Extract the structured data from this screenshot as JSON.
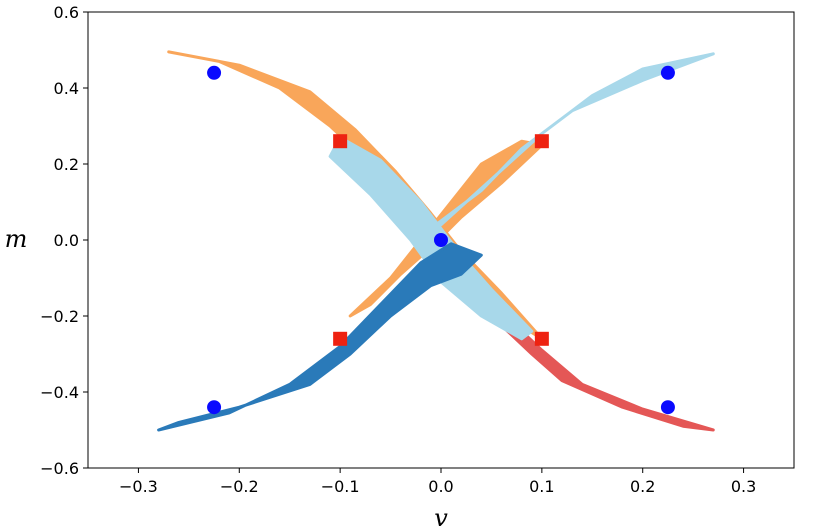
{
  "chart_data": {
    "type": "scatter",
    "xlabel": "v",
    "ylabel": "m",
    "xlim": [
      -0.35,
      0.35
    ],
    "ylim": [
      -0.6,
      0.6
    ],
    "x_ticks": [
      -0.3,
      -0.2,
      -0.1,
      0.0,
      0.1,
      0.2,
      0.3
    ],
    "x_tick_labels": [
      "−0.3",
      "−0.2",
      "−0.1",
      "0.0",
      "0.1",
      "0.2",
      "0.3"
    ],
    "y_ticks": [
      -0.6,
      -0.4,
      -0.2,
      0.0,
      0.2,
      0.4,
      0.6
    ],
    "y_tick_labels": [
      "−0.6",
      "−0.4",
      "−0.2",
      "0.0",
      "0.2",
      "0.4",
      "0.6"
    ],
    "grid": false,
    "legend": "none",
    "regions": [
      {
        "color": "#e45756",
        "points": [
          [
            0.27,
            -0.5
          ],
          [
            0.2,
            -0.445
          ],
          [
            0.14,
            -0.38
          ],
          [
            0.1,
            -0.29
          ],
          [
            0.06,
            -0.19
          ],
          [
            0.03,
            -0.1
          ],
          [
            0.0,
            -0.005
          ],
          [
            -0.005,
            -0.015
          ],
          [
            0.02,
            -0.11
          ],
          [
            0.05,
            -0.2
          ],
          [
            0.09,
            -0.3
          ],
          [
            0.12,
            -0.37
          ],
          [
            0.18,
            -0.44
          ],
          [
            0.24,
            -0.49
          ]
        ]
      },
      {
        "color": "#f9a65a",
        "points": [
          [
            -0.27,
            0.495
          ],
          [
            -0.2,
            0.46
          ],
          [
            -0.13,
            0.39
          ],
          [
            -0.085,
            0.29
          ],
          [
            -0.045,
            0.18
          ],
          [
            -0.01,
            0.07
          ],
          [
            0.02,
            -0.03
          ],
          [
            0.06,
            -0.14
          ],
          [
            0.1,
            -0.26
          ],
          [
            0.07,
            -0.21
          ],
          [
            0.03,
            -0.11
          ],
          [
            0.0,
            -0.02
          ],
          [
            -0.03,
            0.08
          ],
          [
            -0.07,
            0.2
          ],
          [
            -0.11,
            0.3
          ],
          [
            -0.16,
            0.4
          ],
          [
            -0.22,
            0.47
          ]
        ]
      },
      {
        "color": "#f9a65a",
        "points": [
          [
            0.02,
            0.06
          ],
          [
            0.06,
            0.15
          ],
          [
            0.1,
            0.25
          ],
          [
            0.08,
            0.26
          ],
          [
            0.04,
            0.2
          ],
          [
            0.01,
            0.1
          ],
          [
            -0.02,
            0.0
          ],
          [
            -0.05,
            -0.1
          ],
          [
            -0.09,
            -0.2
          ],
          [
            -0.07,
            -0.17
          ],
          [
            -0.04,
            -0.09
          ],
          [
            -0.01,
            -0.02
          ]
        ]
      },
      {
        "color": "#a8d8ea",
        "points": [
          [
            0.27,
            0.49
          ],
          [
            0.2,
            0.45
          ],
          [
            0.15,
            0.38
          ],
          [
            0.1,
            0.28
          ],
          [
            0.05,
            0.16
          ],
          [
            0.0,
            0.04
          ],
          [
            -0.01,
            0.03
          ],
          [
            0.04,
            0.13
          ],
          [
            0.08,
            0.24
          ],
          [
            0.13,
            0.34
          ],
          [
            0.2,
            0.42
          ],
          [
            0.25,
            0.47
          ]
        ]
      },
      {
        "color": "#a8d8ea",
        "points": [
          [
            -0.1,
            0.27
          ],
          [
            -0.06,
            0.21
          ],
          [
            -0.02,
            0.1
          ],
          [
            0.02,
            -0.04
          ],
          [
            0.05,
            -0.13
          ],
          [
            0.09,
            -0.24
          ],
          [
            0.08,
            -0.26
          ],
          [
            0.04,
            -0.2
          ],
          [
            0.0,
            -0.11
          ],
          [
            -0.03,
            0.0
          ],
          [
            -0.07,
            0.12
          ],
          [
            -0.11,
            0.22
          ]
        ]
      },
      {
        "color": "#2a7ab9",
        "points": [
          [
            -0.28,
            -0.5
          ],
          [
            -0.21,
            -0.455
          ],
          [
            -0.15,
            -0.38
          ],
          [
            -0.1,
            -0.28
          ],
          [
            -0.06,
            -0.17
          ],
          [
            -0.02,
            -0.06
          ],
          [
            0.01,
            -0.01
          ],
          [
            0.04,
            -0.04
          ],
          [
            0.02,
            -0.09
          ],
          [
            -0.01,
            -0.12
          ],
          [
            -0.05,
            -0.2
          ],
          [
            -0.09,
            -0.3
          ],
          [
            -0.13,
            -0.38
          ],
          [
            -0.2,
            -0.44
          ],
          [
            -0.26,
            -0.48
          ]
        ]
      }
    ],
    "markers_circle": {
      "color": "#0a0aff",
      "points": [
        [
          -0.225,
          0.44
        ],
        [
          0.225,
          0.44
        ],
        [
          0.0,
          0.0
        ],
        [
          -0.225,
          -0.44
        ],
        [
          0.225,
          -0.44
        ]
      ]
    },
    "markers_square": {
      "color": "#ee2211",
      "points": [
        [
          -0.1,
          0.26
        ],
        [
          0.1,
          0.26
        ],
        [
          -0.1,
          -0.26
        ],
        [
          0.1,
          -0.26
        ]
      ]
    }
  }
}
